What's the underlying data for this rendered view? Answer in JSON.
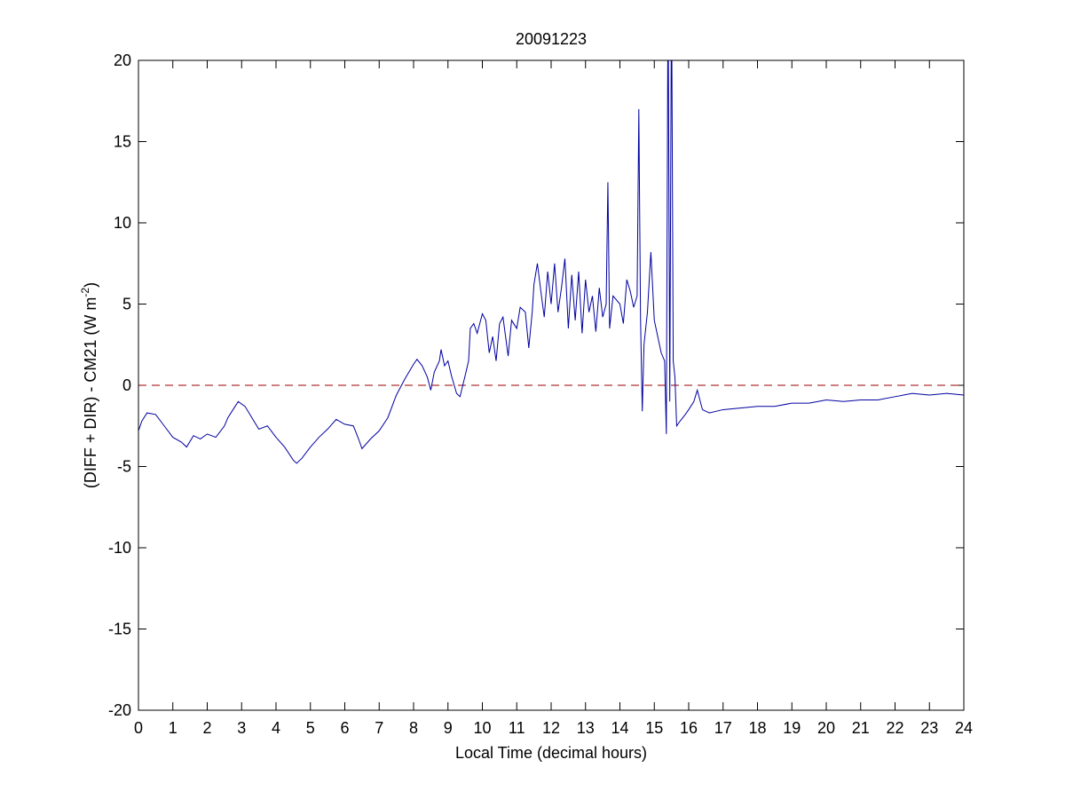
{
  "chart_data": {
    "type": "line",
    "title": "20091223",
    "xlabel": "Local Time (decimal hours)",
    "ylabel": [
      "(DIFF + DIR) - CM21 (W m",
      "-2",
      ")"
    ],
    "x": [
      0,
      0.1,
      0.25,
      0.5,
      0.75,
      1,
      1.25,
      1.4,
      1.6,
      1.8,
      2,
      2.25,
      2.5,
      2.6,
      2.75,
      2.9,
      3.1,
      3.3,
      3.5,
      3.75,
      4,
      4.25,
      4.5,
      4.6,
      4.75,
      5,
      5.25,
      5.5,
      5.75,
      6,
      6.25,
      6.4,
      6.5,
      6.75,
      7,
      7.25,
      7.5,
      7.75,
      8,
      8.1,
      8.25,
      8.4,
      8.5,
      8.6,
      8.75,
      8.8,
      8.9,
      9,
      9.1,
      9.25,
      9.35,
      9.5,
      9.6,
      9.65,
      9.75,
      9.85,
      10,
      10.1,
      10.2,
      10.3,
      10.4,
      10.5,
      10.6,
      10.75,
      10.85,
      11,
      11.1,
      11.25,
      11.35,
      11.45,
      11.5,
      11.6,
      11.7,
      11.8,
      11.9,
      12,
      12.1,
      12.2,
      12.3,
      12.4,
      12.5,
      12.6,
      12.7,
      12.8,
      12.9,
      13,
      13.1,
      13.2,
      13.3,
      13.4,
      13.5,
      13.6,
      13.65,
      13.7,
      13.8,
      14,
      14.1,
      14.2,
      14.3,
      14.4,
      14.5,
      14.55,
      14.6,
      14.65,
      14.7,
      14.8,
      14.9,
      15,
      15.1,
      15.2,
      15.3,
      15.35,
      15.4,
      15.45,
      15.5,
      15.55,
      15.6,
      15.65,
      15.75,
      15.9,
      16,
      16.15,
      16.25,
      16.4,
      16.6,
      17,
      17.5,
      18,
      18.5,
      19,
      19.5,
      20,
      20.5,
      21,
      21.5,
      22,
      22.5,
      23,
      23.5,
      24
    ],
    "series": [
      {
        "name": "DIFF + DIR - CM21",
        "color": "#0000a0",
        "values": [
          -2.8,
          -2.2,
          -1.7,
          -1.8,
          -2.5,
          -3.2,
          -3.5,
          -3.8,
          -3.1,
          -3.3,
          -3.0,
          -3.2,
          -2.5,
          -2.0,
          -1.5,
          -1.0,
          -1.3,
          -2.0,
          -2.7,
          -2.5,
          -3.2,
          -3.8,
          -4.6,
          -4.8,
          -4.5,
          -3.8,
          -3.2,
          -2.7,
          -2.1,
          -2.4,
          -2.5,
          -3.3,
          -3.9,
          -3.3,
          -2.8,
          -2.0,
          -0.6,
          0.4,
          1.3,
          1.6,
          1.2,
          0.5,
          -0.3,
          0.8,
          1.5,
          2.2,
          1.2,
          1.5,
          0.6,
          -0.5,
          -0.7,
          0.6,
          1.5,
          3.5,
          3.8,
          3.2,
          4.4,
          4.0,
          2.0,
          3.0,
          1.5,
          3.8,
          4.2,
          1.8,
          4.0,
          3.5,
          4.8,
          4.5,
          2.3,
          4.5,
          6.2,
          7.5,
          5.8,
          4.2,
          7.0,
          5.0,
          7.5,
          4.5,
          6.0,
          7.8,
          3.5,
          6.8,
          4.0,
          7.0,
          3.2,
          6.5,
          4.5,
          5.5,
          3.3,
          6.0,
          4.2,
          5.0,
          12.5,
          3.5,
          5.5,
          5.0,
          3.8,
          6.5,
          5.8,
          4.8,
          5.5,
          17.0,
          4.0,
          -1.6,
          2.5,
          4.5,
          8.2,
          4.0,
          3.0,
          2.0,
          1.5,
          -3.0,
          25,
          -1.0,
          25,
          1.5,
          0.5,
          -2.5,
          -2.2,
          -1.8,
          -1.5,
          -1.0,
          -0.3,
          -1.5,
          -1.7,
          -1.5,
          -1.4,
          -1.3,
          -1.3,
          -1.1,
          -1.1,
          -0.9,
          -1.0,
          -0.9,
          -0.9,
          -0.7,
          -0.5,
          -0.6,
          -0.5,
          -0.6
        ]
      }
    ],
    "hline": {
      "value": 0,
      "color": "#b03030",
      "style": "dashed"
    },
    "xlim": [
      0,
      24
    ],
    "xticks": [
      0,
      1,
      2,
      3,
      4,
      5,
      6,
      7,
      8,
      9,
      10,
      11,
      12,
      13,
      14,
      15,
      16,
      17,
      18,
      19,
      20,
      21,
      22,
      23,
      24
    ],
    "ylim": [
      -20,
      20
    ],
    "yticks": [
      -20,
      -15,
      -10,
      -5,
      0,
      5,
      10,
      15,
      20
    ],
    "grid": false
  }
}
